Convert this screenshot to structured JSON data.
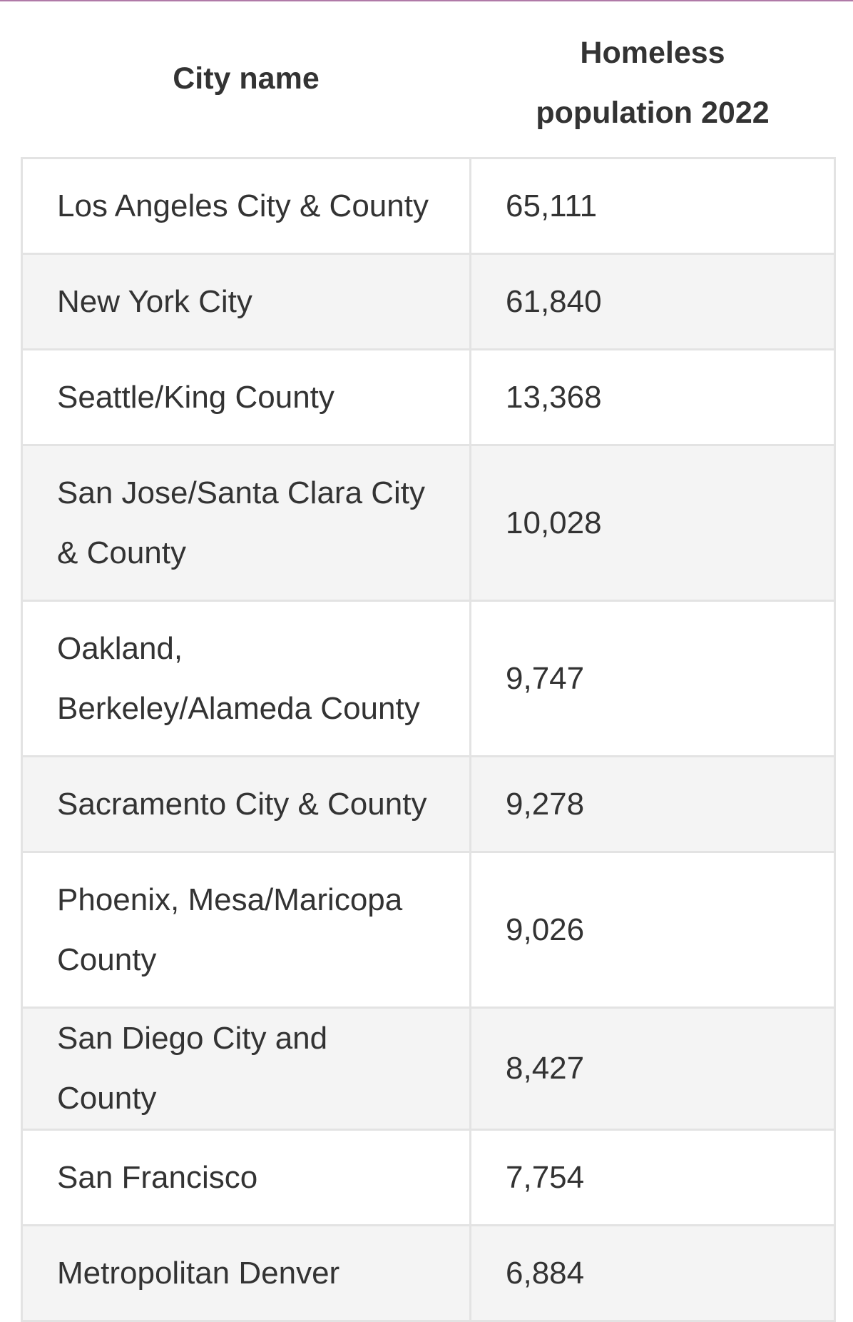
{
  "table": {
    "headers": {
      "city": "City name",
      "population": "Homeless population 2022"
    },
    "rows": [
      {
        "city": "Los Angeles City & County",
        "population": "65,111"
      },
      {
        "city": "New York City",
        "population": "61,840"
      },
      {
        "city": "Seattle/King County",
        "population": "13,368"
      },
      {
        "city": "San Jose/Santa Clara City & County",
        "population": "10,028"
      },
      {
        "city": "Oakland, Berkeley/Alameda County",
        "population": "9,747"
      },
      {
        "city": "Sacramento City & County",
        "population": "9,278"
      },
      {
        "city": "Phoenix, Mesa/Maricopa County",
        "population": "9,026"
      },
      {
        "city": "San Diego City and County",
        "population": "8,427"
      },
      {
        "city": "San Francisco",
        "population": "7,754"
      },
      {
        "city": "Metropolitan Denver",
        "population": "6,884"
      }
    ]
  },
  "colors": {
    "accent_line": "#b07aa8",
    "border": "#e3e3e3",
    "row_alt": "#f4f4f4",
    "text": "#333333"
  }
}
